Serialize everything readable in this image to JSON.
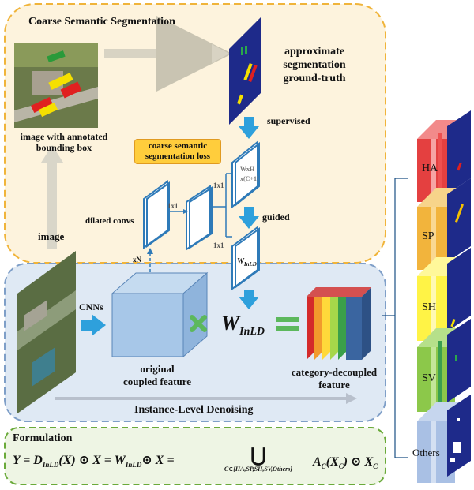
{
  "sections": {
    "coarse_title": "Coarse Semantic Segmentation",
    "instance_title": "Instance-Level Denoising",
    "formulation_title": "Formulation"
  },
  "labels": {
    "approx_gt_line1": "approximate",
    "approx_gt_line2": "segmentation",
    "approx_gt_line3": "ground-truth",
    "supervised": "supervised",
    "image_annotated_line1": "image with annotated",
    "image_annotated_line2": "bounding box",
    "loss_line1": "coarse semantic",
    "loss_line2": "segmentation loss",
    "dilated_convs": "dilated convs",
    "image": "image",
    "guided": "guided",
    "cnns": "CNNs",
    "original_line1": "original",
    "original_line2": "coupled feature",
    "decoupled_line1": "category-decoupled",
    "decoupled_line2": "feature",
    "w_inld": "W",
    "w_inld_sub": "InLD",
    "conv_1x1_a": "1x1",
    "conv_1x1_b": "1x1",
    "conv_1x1_c": "1x1",
    "conv_wxh": "WxH",
    "conv_c1": "x(C+1)",
    "xn": "xN",
    "w_small": "W",
    "w_small_sub": "InLD"
  },
  "categories": [
    "HA",
    "SP",
    "SH",
    "SV",
    "Others"
  ],
  "formula": {
    "lhs": "Y = D",
    "sub1": "InLD",
    "mid1": "(X) ⊙ X = W",
    "sub2": "InLD",
    "mid2": "⊙ X =",
    "union": "⋃",
    "union_sub": "C∈{HA,SP,SH,SV,Others}",
    "rhs": "A",
    "rhs_sub": "C",
    "rhs2": "(X",
    "rhs2_sub": "C",
    "rhs3": ") ⊙ X",
    "rhs3_sub": "C"
  },
  "colors": {
    "coarse_bg": "#fdf3dd",
    "coarse_border": "#f0b43a",
    "instance_bg": "#dfe9f4",
    "instance_border": "#7f9fc8",
    "formula_bg": "#eef5e4",
    "formula_border": "#6aaa3a",
    "arrow_blue": "#2ea0dc",
    "plus_green": "#5cb85c"
  }
}
